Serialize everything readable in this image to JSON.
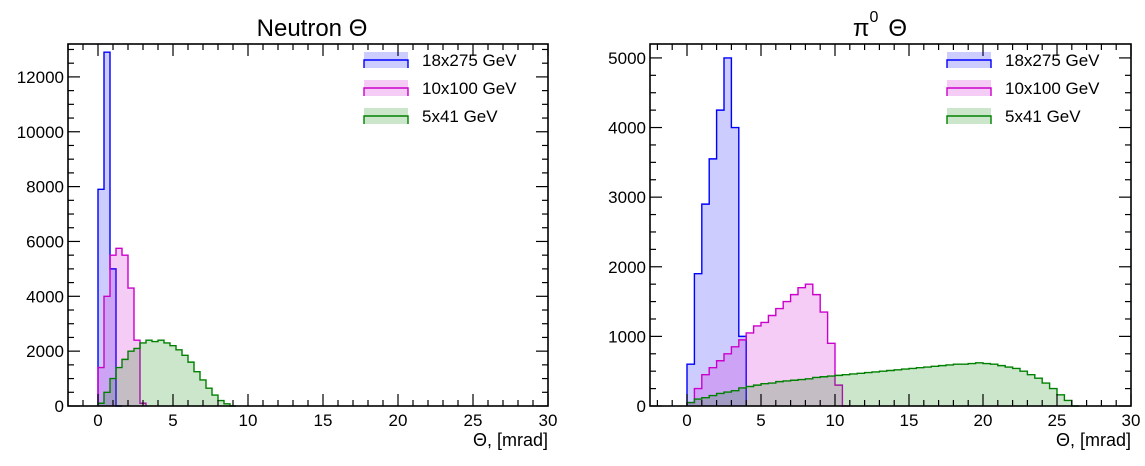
{
  "chart_data": [
    {
      "type": "histogram",
      "title": "Neutron Θ",
      "xlabel": "Θ, [mrad]",
      "ylabel": "",
      "xlim": [
        -2,
        30
      ],
      "ylim": [
        0,
        13200
      ],
      "xticks": [
        0,
        5,
        10,
        15,
        20,
        25,
        30
      ],
      "yticks": [
        0,
        2000,
        4000,
        6000,
        8000,
        10000,
        12000
      ],
      "grid": false,
      "legend_position": "top-right",
      "bin_width": 0.4,
      "series": [
        {
          "name": "18x275 GeV",
          "color": "#0000ff",
          "x_start": 0.0,
          "values": [
            7900,
            12900,
            5000,
            0
          ]
        },
        {
          "name": "10x100 GeV",
          "color": "#cc00cc",
          "x_start": 0.0,
          "values": [
            1400,
            4000,
            5500,
            5750,
            5500,
            4300,
            2400,
            100
          ]
        },
        {
          "name": "5x41 GeV",
          "color": "#008000",
          "x_start": 0.0,
          "values": [
            100,
            500,
            1000,
            1400,
            1700,
            2000,
            2100,
            2300,
            2400,
            2350,
            2400,
            2300,
            2200,
            2050,
            1850,
            1600,
            1250,
            950,
            650,
            400,
            200,
            80,
            0
          ]
        }
      ]
    },
    {
      "type": "histogram",
      "title": "π⁰ Θ",
      "title_main": "π",
      "title_sup": "0",
      "title_end": "Θ",
      "xlabel": "Θ, [mrad]",
      "ylabel": "",
      "xlim": [
        -2.5,
        30
      ],
      "ylim": [
        0,
        5200
      ],
      "xticks": [
        0,
        5,
        10,
        15,
        20,
        25,
        30
      ],
      "yticks": [
        0,
        1000,
        2000,
        3000,
        4000,
        5000
      ],
      "grid": false,
      "legend_position": "top-right",
      "bin_width": 0.5,
      "series": [
        {
          "name": "18x275 GeV",
          "color": "#0000ff",
          "x_start": 0.0,
          "values": [
            600,
            1900,
            2900,
            3550,
            4250,
            5000,
            4000,
            1000
          ]
        },
        {
          "name": "10x100 GeV",
          "color": "#cc00cc",
          "x_start": 0.0,
          "values": [
            50,
            250,
            450,
            550,
            650,
            750,
            850,
            950,
            1050,
            1150,
            1200,
            1300,
            1400,
            1500,
            1600,
            1700,
            1750,
            1600,
            1350,
            900,
            300,
            0
          ]
        },
        {
          "name": "5x41 GeV",
          "color": "#008000",
          "x_start": 0.0,
          "values": [
            50,
            100,
            120,
            150,
            180,
            200,
            220,
            260,
            280,
            300,
            320,
            330,
            350,
            360,
            370,
            380,
            390,
            410,
            420,
            430,
            440,
            450,
            460,
            470,
            480,
            490,
            500,
            510,
            520,
            530,
            540,
            550,
            560,
            570,
            580,
            590,
            600,
            600,
            610,
            620,
            610,
            600,
            580,
            560,
            540,
            500,
            450,
            400,
            330,
            250,
            160,
            80,
            0
          ]
        }
      ]
    }
  ]
}
